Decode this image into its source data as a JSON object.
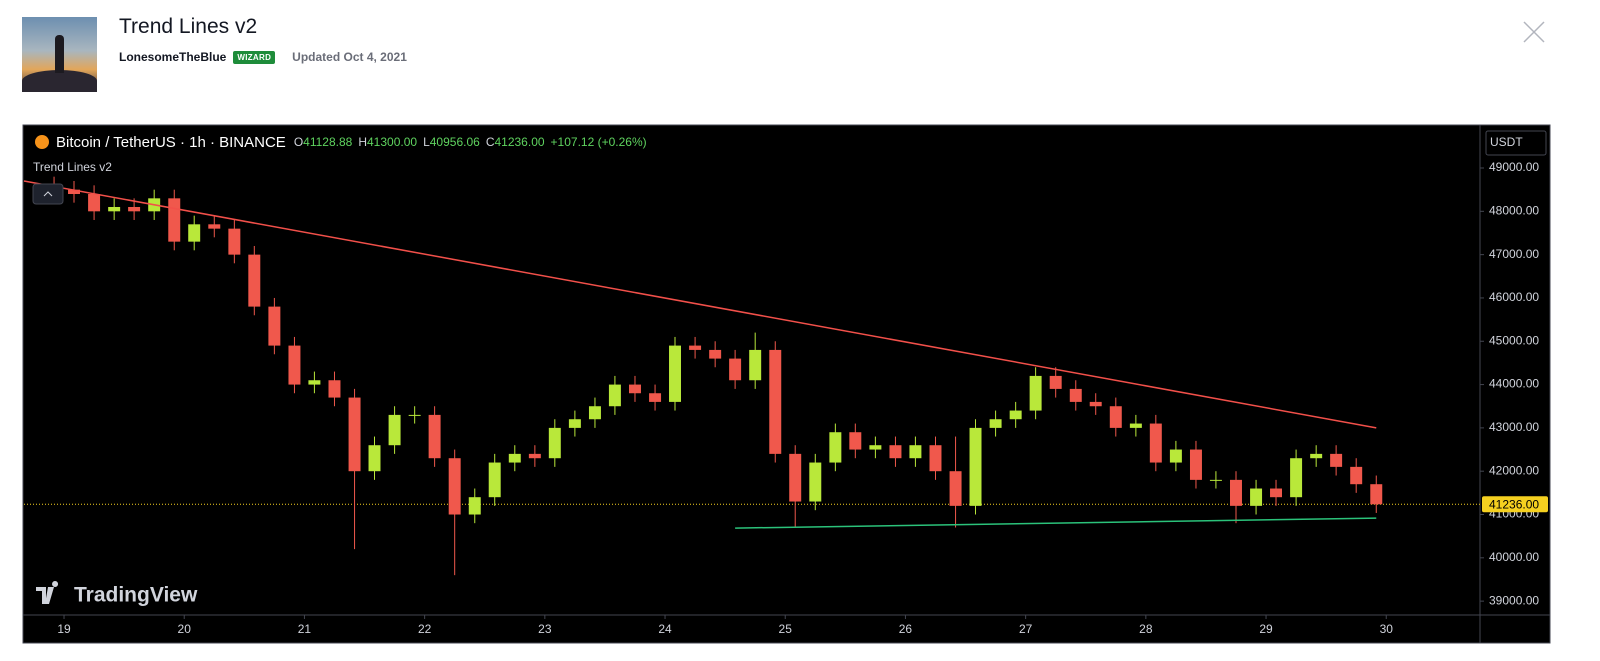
{
  "header": {
    "title": "Trend Lines v2",
    "author": "LonesomeTheBlue",
    "badge": "WIZARD",
    "updated": "Updated Oct 4, 2021"
  },
  "chart_data": {
    "type": "candlestick",
    "symbol": "Bitcoin / TetherUS · 1h · BINANCE",
    "legend": [
      {
        "label": "O",
        "value": "41128.88"
      },
      {
        "label": "H",
        "value": "41300.00"
      },
      {
        "label": "L",
        "value": "40956.06"
      },
      {
        "label": "C",
        "value": "41236.00"
      }
    ],
    "change": "+107.12 (+0.26%)",
    "indicator": "Trend Lines v2",
    "currency": "USDT",
    "watermark": "TradingView",
    "up_color": "#b9e83a",
    "down_color": "#f0584c",
    "x": [
      18.917,
      19.083,
      19.25,
      19.417,
      19.583,
      19.75,
      19.917,
      20.083,
      20.25,
      20.417,
      20.583,
      20.75,
      20.917,
      21.083,
      21.25,
      21.417,
      21.583,
      21.75,
      21.917,
      22.083,
      22.25,
      22.417,
      22.583,
      22.75,
      22.917,
      23.083,
      23.25,
      23.417,
      23.583,
      23.75,
      23.917,
      24.083,
      24.25,
      24.417,
      24.583,
      24.75,
      24.917,
      25.083,
      25.25,
      25.417,
      25.583,
      25.75,
      25.917,
      26.083,
      26.25,
      26.417,
      26.583,
      26.75,
      26.917,
      27.083,
      27.25,
      27.417,
      27.583,
      27.75,
      27.917,
      28.083,
      28.25,
      28.417,
      28.583,
      28.75,
      28.917,
      29.083,
      29.25,
      29.417,
      29.583,
      29.75,
      29.917
    ],
    "open": [
      48600,
      48500,
      48400,
      48000,
      48100,
      48000,
      48300,
      47300,
      47700,
      47600,
      47000,
      45800,
      44900,
      44000,
      44100,
      43700,
      42000,
      42600,
      43300,
      43300,
      42300,
      41000,
      41400,
      42200,
      42400,
      42300,
      43000,
      43200,
      43500,
      44000,
      43800,
      43600,
      44900,
      44800,
      44600,
      44100,
      44800,
      42400,
      41300,
      42200,
      42900,
      42500,
      42600,
      42300,
      42600,
      42000,
      41200,
      43000,
      43200,
      43400,
      44200,
      43900,
      43600,
      43500,
      43000,
      43100,
      42200,
      42500,
      41800,
      41800,
      41200,
      41600,
      41400,
      42300,
      42400,
      42100,
      41700
    ],
    "high": [
      48800,
      48700,
      48600,
      48300,
      48300,
      48500,
      48500,
      47900,
      47900,
      47800,
      47200,
      46000,
      45100,
      44300,
      44300,
      43900,
      42800,
      43500,
      43500,
      43500,
      42500,
      41600,
      42400,
      42600,
      42600,
      43200,
      43400,
      43700,
      44200,
      44200,
      44000,
      45100,
      45100,
      45000,
      44800,
      45200,
      45000,
      42600,
      42400,
      43100,
      43100,
      42800,
      42800,
      42800,
      42800,
      42800,
      43200,
      43400,
      43600,
      44400,
      44400,
      44100,
      43800,
      43700,
      43300,
      43300,
      42700,
      42700,
      42000,
      42000,
      41800,
      41800,
      42500,
      42600,
      42600,
      42300,
      41900
    ],
    "low": [
      48300,
      48200,
      47800,
      47800,
      47800,
      47800,
      47100,
      47100,
      47400,
      46800,
      45600,
      44700,
      43800,
      43800,
      43500,
      40200,
      41800,
      42400,
      43100,
      42100,
      39600,
      40800,
      41200,
      42000,
      42100,
      42100,
      42800,
      43000,
      43300,
      43600,
      43400,
      43400,
      44600,
      44400,
      43900,
      43900,
      42200,
      40700,
      41100,
      42000,
      42300,
      42300,
      42100,
      42100,
      41800,
      40700,
      41000,
      42800,
      43000,
      43200,
      43700,
      43400,
      43300,
      42800,
      42800,
      42000,
      42000,
      41600,
      41600,
      40800,
      41000,
      41200,
      41200,
      42100,
      41900,
      41500,
      41036
    ],
    "close": [
      48500,
      48400,
      48000,
      48100,
      48000,
      48300,
      47300,
      47700,
      47600,
      47000,
      45800,
      44900,
      44000,
      44100,
      43700,
      42000,
      42600,
      43300,
      43300,
      42300,
      41000,
      41400,
      42200,
      42400,
      42300,
      43000,
      43200,
      43500,
      44000,
      43800,
      43600,
      44900,
      44800,
      44600,
      44100,
      44800,
      42400,
      41300,
      42200,
      42900,
      42500,
      42600,
      42300,
      42600,
      42000,
      41200,
      43000,
      43200,
      43400,
      44200,
      43900,
      43600,
      43500,
      43000,
      43100,
      42200,
      42500,
      41800,
      41800,
      41200,
      41600,
      41400,
      42300,
      42400,
      42100,
      41700,
      41236
    ],
    "trend_lines": [
      {
        "color": "#f2504a",
        "x": [
          18.667,
          29.917
        ],
        "values": [
          48700,
          43000
        ]
      },
      {
        "color": "#2bc27a",
        "x": [
          24.583,
          29.917
        ],
        "values": [
          40686,
          40917
        ]
      }
    ],
    "last_price": {
      "value": 41236,
      "label": "41236.00",
      "color": "#f5d020"
    },
    "xlim": [
      18.667,
      30.78
    ],
    "ylim": [
      38680,
      49970
    ],
    "xticks": [
      19,
      20,
      21,
      22,
      23,
      24,
      25,
      26,
      27,
      28,
      29,
      30
    ],
    "yticks": [
      {
        "value": 39000,
        "label": "39000.00"
      },
      {
        "value": 40000,
        "label": "40000.00"
      },
      {
        "value": 41000,
        "label": "41000.00"
      },
      {
        "value": 42000,
        "label": "42000.00"
      },
      {
        "value": 43000,
        "label": "43000.00"
      },
      {
        "value": 44000,
        "label": "44000.00"
      },
      {
        "value": 45000,
        "label": "45000.00"
      },
      {
        "value": 46000,
        "label": "46000.00"
      },
      {
        "value": 47000,
        "label": "47000.00"
      },
      {
        "value": 48000,
        "label": "48000.00"
      },
      {
        "value": 49000,
        "label": "49000.00"
      }
    ]
  }
}
